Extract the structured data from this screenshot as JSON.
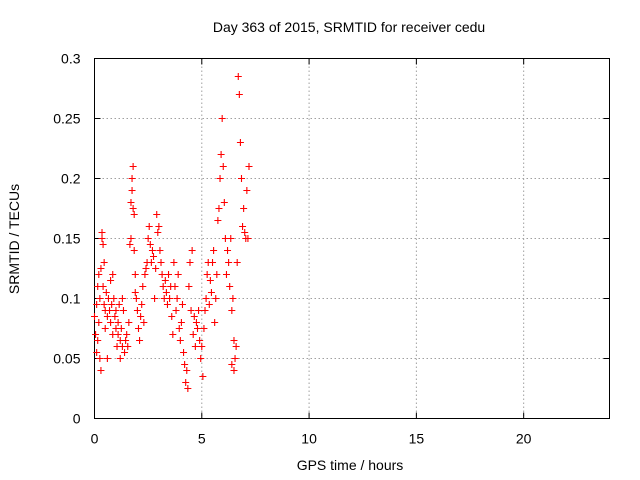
{
  "chart_data": {
    "type": "scatter",
    "title": "Day 363 of 2015, SRMTID for receiver cedu",
    "xlabel": "GPS time / hours",
    "ylabel": "SRMTID / TECUs",
    "xlim": [
      0,
      24
    ],
    "ylim": [
      0,
      0.3
    ],
    "x_ticks": [
      0,
      5,
      10,
      15,
      20
    ],
    "x_tick_labels": [
      "0",
      "5",
      "10",
      "15",
      "20"
    ],
    "y_ticks": [
      0,
      0.05,
      0.1,
      0.15,
      0.2,
      0.25,
      0.3
    ],
    "y_tick_labels": [
      "0",
      "0.05",
      "0.1",
      "0.15",
      "0.2",
      "0.25",
      "0.3"
    ],
    "grid": true,
    "marker": "+",
    "color": "#ff0000",
    "series": [
      {
        "points": [
          [
            0.0,
            0.085
          ],
          [
            0.05,
            0.07
          ],
          [
            0.1,
            0.095
          ],
          [
            0.1,
            0.055
          ],
          [
            0.15,
            0.11
          ],
          [
            0.15,
            0.065
          ],
          [
            0.2,
            0.12
          ],
          [
            0.2,
            0.08
          ],
          [
            0.25,
            0.1
          ],
          [
            0.25,
            0.05
          ],
          [
            0.3,
            0.125
          ],
          [
            0.3,
            0.04
          ],
          [
            0.35,
            0.15
          ],
          [
            0.35,
            0.155
          ],
          [
            0.4,
            0.145
          ],
          [
            0.4,
            0.11
          ],
          [
            0.45,
            0.13
          ],
          [
            0.45,
            0.095
          ],
          [
            0.5,
            0.09
          ],
          [
            0.5,
            0.075
          ],
          [
            0.55,
            0.105
          ],
          [
            0.6,
            0.085
          ],
          [
            0.6,
            0.05
          ],
          [
            0.65,
            0.1
          ],
          [
            0.7,
            0.09
          ],
          [
            0.75,
            0.115
          ],
          [
            0.75,
            0.08
          ],
          [
            0.8,
            0.095
          ],
          [
            0.85,
            0.12
          ],
          [
            0.85,
            0.07
          ],
          [
            0.9,
            0.1
          ],
          [
            0.95,
            0.085
          ],
          [
            1.0,
            0.09
          ],
          [
            1.0,
            0.075
          ],
          [
            1.05,
            0.06
          ],
          [
            1.1,
            0.08
          ],
          [
            1.1,
            0.07
          ],
          [
            1.15,
            0.095
          ],
          [
            1.2,
            0.065
          ],
          [
            1.2,
            0.05
          ],
          [
            1.25,
            0.075
          ],
          [
            1.3,
            0.1
          ],
          [
            1.3,
            0.06
          ],
          [
            1.35,
            0.09
          ],
          [
            1.4,
            0.055
          ],
          [
            1.45,
            0.065
          ],
          [
            1.5,
            0.07
          ],
          [
            1.55,
            0.06
          ],
          [
            1.6,
            0.08
          ],
          [
            1.65,
            0.145
          ],
          [
            1.7,
            0.15
          ],
          [
            1.7,
            0.18
          ],
          [
            1.75,
            0.2
          ],
          [
            1.75,
            0.19
          ],
          [
            1.8,
            0.175
          ],
          [
            1.8,
            0.21
          ],
          [
            1.85,
            0.17
          ],
          [
            1.85,
            0.14
          ],
          [
            1.9,
            0.105
          ],
          [
            1.9,
            0.12
          ],
          [
            1.95,
            0.1
          ],
          [
            2.0,
            0.09
          ],
          [
            2.05,
            0.075
          ],
          [
            2.1,
            0.065
          ],
          [
            2.15,
            0.085
          ],
          [
            2.2,
            0.095
          ],
          [
            2.25,
            0.11
          ],
          [
            2.3,
            0.08
          ],
          [
            2.35,
            0.12
          ],
          [
            2.4,
            0.125
          ],
          [
            2.45,
            0.13
          ],
          [
            2.5,
            0.15
          ],
          [
            2.55,
            0.16
          ],
          [
            2.6,
            0.145
          ],
          [
            2.65,
            0.13
          ],
          [
            2.7,
            0.14
          ],
          [
            2.75,
            0.135
          ],
          [
            2.8,
            0.1
          ],
          [
            2.85,
            0.125
          ],
          [
            2.9,
            0.17
          ],
          [
            2.95,
            0.155
          ],
          [
            3.0,
            0.16
          ],
          [
            3.05,
            0.14
          ],
          [
            3.1,
            0.13
          ],
          [
            3.15,
            0.12
          ],
          [
            3.2,
            0.11
          ],
          [
            3.25,
            0.1
          ],
          [
            3.3,
            0.115
          ],
          [
            3.35,
            0.105
          ],
          [
            3.4,
            0.095
          ],
          [
            3.45,
            0.12
          ],
          [
            3.5,
            0.1
          ],
          [
            3.55,
            0.11
          ],
          [
            3.6,
            0.085
          ],
          [
            3.65,
            0.07
          ],
          [
            3.7,
            0.13
          ],
          [
            3.75,
            0.11
          ],
          [
            3.8,
            0.09
          ],
          [
            3.85,
            0.1
          ],
          [
            3.9,
            0.12
          ],
          [
            3.95,
            0.075
          ],
          [
            4.0,
            0.065
          ],
          [
            4.05,
            0.08
          ],
          [
            4.1,
            0.095
          ],
          [
            4.15,
            0.055
          ],
          [
            4.2,
            0.045
          ],
          [
            4.25,
            0.03
          ],
          [
            4.3,
            0.04
          ],
          [
            4.35,
            0.025
          ],
          [
            4.4,
            0.11
          ],
          [
            4.45,
            0.13
          ],
          [
            4.5,
            0.09
          ],
          [
            4.55,
            0.14
          ],
          [
            4.6,
            0.07
          ],
          [
            4.65,
            0.085
          ],
          [
            4.7,
            0.06
          ],
          [
            4.75,
            0.08
          ],
          [
            4.8,
            0.075
          ],
          [
            4.85,
            0.09
          ],
          [
            4.9,
            0.065
          ],
          [
            4.95,
            0.05
          ],
          [
            5.0,
            0.06
          ],
          [
            5.05,
            0.035
          ],
          [
            5.1,
            0.075
          ],
          [
            5.15,
            0.09
          ],
          [
            5.2,
            0.1
          ],
          [
            5.25,
            0.12
          ],
          [
            5.3,
            0.13
          ],
          [
            5.35,
            0.095
          ],
          [
            5.4,
            0.115
          ],
          [
            5.45,
            0.105
          ],
          [
            5.5,
            0.13
          ],
          [
            5.55,
            0.14
          ],
          [
            5.6,
            0.08
          ],
          [
            5.65,
            0.1
          ],
          [
            5.7,
            0.12
          ],
          [
            5.75,
            0.165
          ],
          [
            5.8,
            0.175
          ],
          [
            5.85,
            0.2
          ],
          [
            5.9,
            0.22
          ],
          [
            5.95,
            0.25
          ],
          [
            6.0,
            0.21
          ],
          [
            6.05,
            0.18
          ],
          [
            6.1,
            0.15
          ],
          [
            6.15,
            0.12
          ],
          [
            6.2,
            0.14
          ],
          [
            6.25,
            0.13
          ],
          [
            6.3,
            0.11
          ],
          [
            6.35,
            0.15
          ],
          [
            6.4,
            0.09
          ],
          [
            6.45,
            0.1
          ],
          [
            6.5,
            0.065
          ],
          [
            6.55,
            0.05
          ],
          [
            6.6,
            0.06
          ],
          [
            6.65,
            0.13
          ],
          [
            6.7,
            0.285
          ],
          [
            6.75,
            0.27
          ],
          [
            6.8,
            0.23
          ],
          [
            6.85,
            0.2
          ],
          [
            6.9,
            0.16
          ],
          [
            6.95,
            0.175
          ],
          [
            7.0,
            0.155
          ],
          [
            7.05,
            0.15
          ],
          [
            7.1,
            0.19
          ],
          [
            7.15,
            0.15
          ],
          [
            7.2,
            0.21
          ],
          [
            6.4,
            0.045
          ],
          [
            6.5,
            0.04
          ]
        ]
      }
    ]
  }
}
